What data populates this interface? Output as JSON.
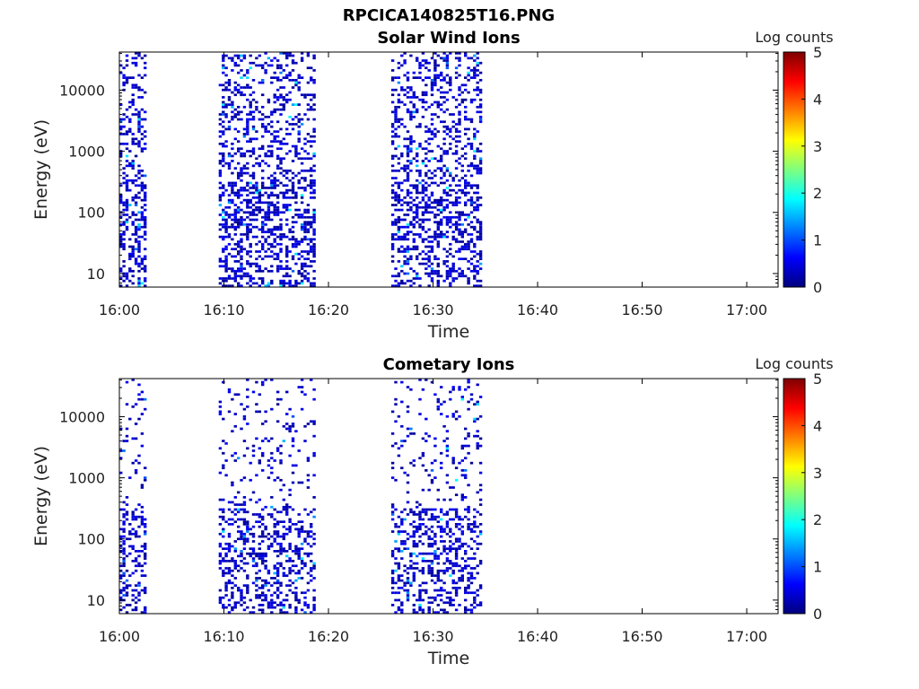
{
  "figure": {
    "title": "RPCICA140825T16.PNG"
  },
  "colors": {
    "background": "#ffffff",
    "axis": "#000000",
    "colormap": [
      "#00007f",
      "#0000ff",
      "#007fff",
      "#00ffff",
      "#7fff7f",
      "#ffff00",
      "#ff7f00",
      "#ff0000",
      "#7f0000"
    ]
  },
  "chart_data": [
    {
      "type": "heatmap",
      "title": "Solar Wind Ions",
      "xlabel": "Time",
      "ylabel": "Energy (eV)",
      "x_ticks": [
        "16:00",
        "16:10",
        "16:20",
        "16:30",
        "16:40",
        "16:50",
        "17:00"
      ],
      "xlim": [
        "16:00",
        "17:03"
      ],
      "y_scale": "log",
      "y_ticks": [
        "10",
        "100",
        "1000",
        "10000"
      ],
      "ylim": [
        6,
        42000
      ],
      "colorbar": {
        "label": "Log counts",
        "range": [
          0,
          5
        ],
        "ticks": [
          "0",
          "1",
          "2",
          "3",
          "4",
          "5"
        ],
        "colormap": "jet"
      },
      "data_windows": [
        {
          "start": "16:00",
          "end": "16:02.5",
          "peak_log_counts": 1.8
        },
        {
          "start": "16:09.5",
          "end": "16:18.5",
          "peak_log_counts": 1.9
        },
        {
          "start": "16:26",
          "end": "16:34.5",
          "peak_log_counts": 1.9
        }
      ],
      "description_values": {
        "max_log_counts": 1.9,
        "typical_log_counts": 0.3
      }
    },
    {
      "type": "heatmap",
      "title": "Cometary Ions",
      "xlabel": "Time",
      "ylabel": "Energy (eV)",
      "x_ticks": [
        "16:00",
        "16:10",
        "16:20",
        "16:30",
        "16:40",
        "16:50",
        "17:00"
      ],
      "xlim": [
        "16:00",
        "17:03"
      ],
      "y_scale": "log",
      "y_ticks": [
        "10",
        "100",
        "1000",
        "10000"
      ],
      "ylim": [
        6,
        42000
      ],
      "colorbar": {
        "label": "Log counts",
        "range": [
          0,
          5
        ],
        "ticks": [
          "0",
          "1",
          "2",
          "3",
          "4",
          "5"
        ],
        "colormap": "jet"
      },
      "data_windows": [
        {
          "start": "16:00",
          "end": "16:02.5",
          "peak_log_counts": 1.2
        },
        {
          "start": "16:09.5",
          "end": "16:18.5",
          "peak_log_counts": 1.8
        },
        {
          "start": "16:26",
          "end": "16:34.5",
          "peak_log_counts": 1.9
        }
      ],
      "description_values": {
        "max_log_counts": 1.9,
        "typical_log_counts": 0.3
      }
    }
  ]
}
